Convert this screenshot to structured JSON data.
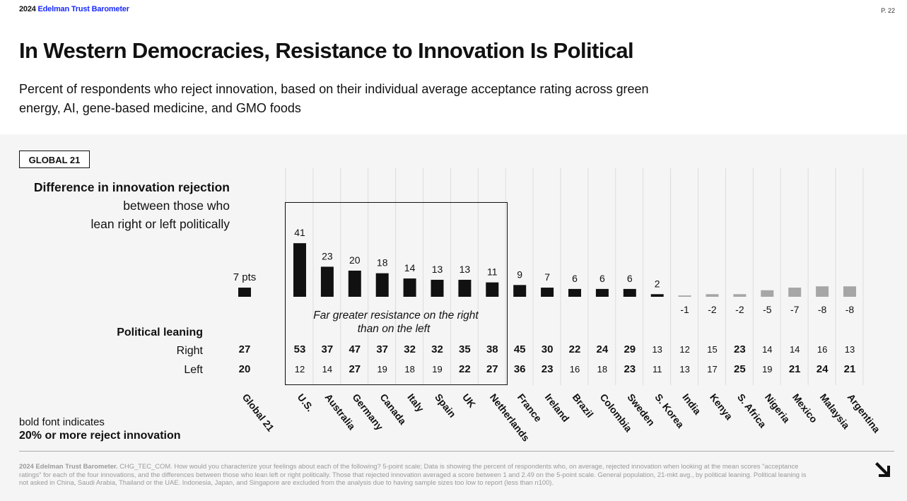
{
  "header": {
    "year": "2024",
    "brand": "Edelman Trust Barometer",
    "page": "P. 22"
  },
  "title": "In Western Democracies, Resistance to Innovation Is Political",
  "subtitle": "Percent of respondents who reject innovation, based on their individual average acceptance rating across green energy, AI, gene-based medicine, and GMO foods",
  "badge": "GLOBAL 21",
  "description": {
    "line1": "Difference in innovation rejection",
    "line2": "between those who",
    "line3": "lean right or left politically"
  },
  "political_leaning": {
    "title": "Political leaning",
    "right": "Right",
    "left": "Left"
  },
  "bold_note": {
    "line1": "bold font indicates",
    "line2": "20% or more reject innovation"
  },
  "box_annotation": {
    "line1": "Far greater resistance on the right",
    "line2": "than on the left"
  },
  "footnote": {
    "lead": "2024 Edelman Trust Barometer.",
    "text": " CHG_TEC_COM. How would you characterize your feelings about each of the following? 5-point scale; Data is showing the percent of respondents who, on average, rejected innovation when looking at the mean scores \"acceptance ratings\" for each of the four innovations, and the differences between those who lean left or right politically. Those that rejected innovation averaged a score between 1 and 2.49 on the 5-point scale. General population, 21-mkt avg., by political leaning. Political leaning is not asked in China, Saudi Arabia, Thailand or the UAE. Indonesia, Japan, and Singapore are excluded from the analysis due to having sample sizes too low to report (less than n100)."
  },
  "colors": {
    "bar_positive": "#111111",
    "bar_negative": "#a6a6a6",
    "brand": "#1a2bff",
    "panel": "#f5f5f5"
  },
  "icons": {
    "corner_arrow": "arrow-down-right-icon"
  },
  "chart_data": {
    "type": "bar",
    "categories": [
      "Global 21",
      "U.S.",
      "Australia",
      "Germany",
      "Canada",
      "Italy",
      "Spain",
      "UK",
      "Netherlands",
      "France",
      "Ireland",
      "Brazil",
      "Colombia",
      "Sweden",
      "S. Korea",
      "India",
      "Kenya",
      "S. Africa",
      "Nigeria",
      "Mexico",
      "Malaysia",
      "Argentina"
    ],
    "value_labels": [
      "7 pts",
      "41",
      "23",
      "20",
      "18",
      "14",
      "13",
      "13",
      "11",
      "9",
      "7",
      "6",
      "6",
      "6",
      "2",
      "-1",
      "-2",
      "-2",
      "-5",
      "-7",
      "-8",
      "-8"
    ],
    "series": [
      {
        "values": [
          7,
          41,
          23,
          20,
          18,
          14,
          13,
          13,
          11,
          9,
          7,
          6,
          6,
          6,
          2,
          -1,
          -2,
          -2,
          -5,
          -7,
          -8,
          -8
        ]
      },
      {
        "name": "Right",
        "values": [
          27,
          53,
          37,
          47,
          37,
          32,
          32,
          35,
          38,
          45,
          30,
          22,
          24,
          29,
          13,
          12,
          15,
          23,
          14,
          14,
          16,
          13
        ]
      },
      {
        "name": "Left",
        "values": [
          20,
          12,
          14,
          27,
          19,
          18,
          19,
          22,
          27,
          36,
          23,
          16,
          18,
          23,
          11,
          13,
          17,
          25,
          19,
          21,
          24,
          21
        ]
      }
    ],
    "bold_threshold": 20,
    "highlight_group": [
      "U.S.",
      "Australia",
      "Germany",
      "Canada",
      "Italy",
      "Spain",
      "UK",
      "Netherlands"
    ],
    "grid": true
  }
}
